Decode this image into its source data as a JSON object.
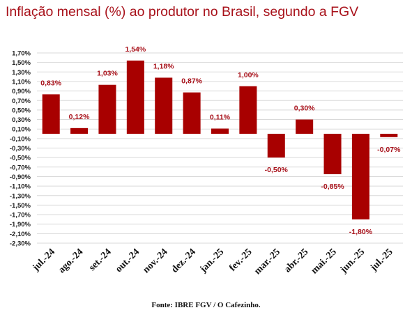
{
  "chart_data": {
    "type": "bar",
    "title": "Inflação mensal (%) ao produtor no Brasil, segundo a FGV",
    "categories": [
      "jul.-24",
      "ago.-24",
      "set.-24",
      "out.-24",
      "nov.-24",
      "dez.-24",
      "jan.-25",
      "fev.-25",
      "mar.-25",
      "abr.-25",
      "mai.-25",
      "jun.-25",
      "jul.-25"
    ],
    "values": [
      0.83,
      0.12,
      1.03,
      1.54,
      1.18,
      0.87,
      0.11,
      1.0,
      -0.5,
      0.3,
      -0.85,
      -1.8,
      -0.07
    ],
    "value_labels": [
      "0,83%",
      "0,12%",
      "1,03%",
      "1,54%",
      "1,18%",
      "0,87%",
      "0,11%",
      "1,00%",
      "-0,50%",
      "0,30%",
      "-0,85%",
      "-1,80%",
      "-0,07%"
    ],
    "y_ticks": [
      1.7,
      1.5,
      1.3,
      1.1,
      0.9,
      0.7,
      0.5,
      0.3,
      0.1,
      -0.1,
      -0.3,
      -0.5,
      -0.7,
      -0.9,
      -1.1,
      -1.3,
      -1.5,
      -1.7,
      -1.9,
      -2.1,
      -2.3
    ],
    "y_tick_labels": [
      "1,70%",
      "1,50%",
      "1,30%",
      "1,10%",
      "0,90%",
      "0,70%",
      "0,50%",
      "0,30%",
      "0,10%",
      "-0,10%",
      "-0,30%",
      "-0,50%",
      "-0,70%",
      "-0,90%",
      "-1,10%",
      "-1,30%",
      "-1,50%",
      "-1,70%",
      "-1,90%",
      "-2,10%",
      "-2,30%"
    ],
    "ylim": [
      -2.3,
      1.7
    ],
    "grid": true,
    "bar_color": "#a80000",
    "label_color": "#a8111a"
  },
  "source": "Fonte: IBRE FGV / O Cafezinho."
}
